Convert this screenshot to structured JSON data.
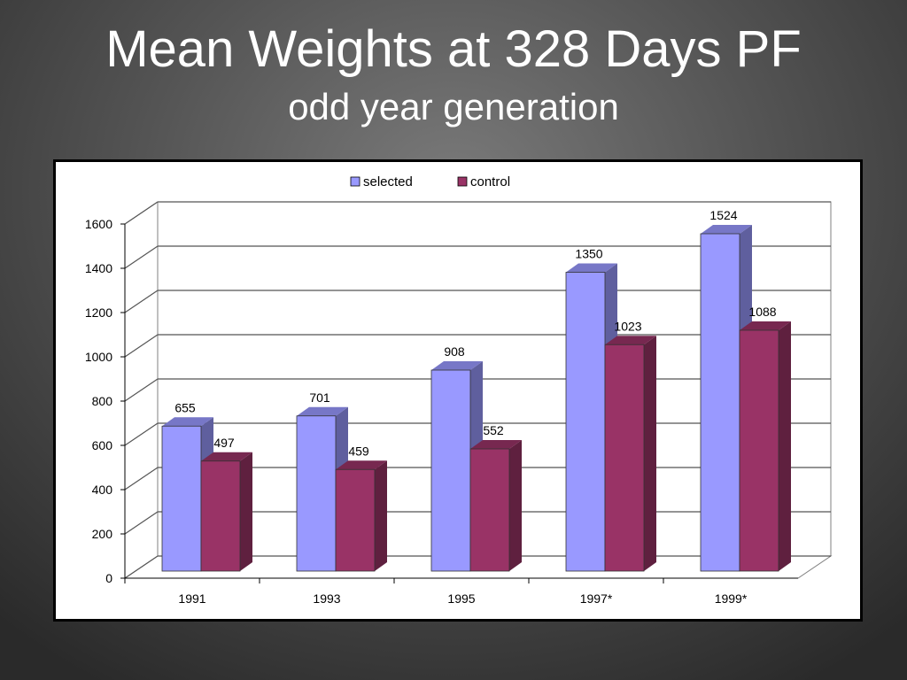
{
  "slide": {
    "title": "Mean Weights at 328 Days PF",
    "subtitle": "odd year generation"
  },
  "chart_data": {
    "type": "bar",
    "style": "3d-clustered",
    "categories": [
      "1991",
      "1993",
      "1995",
      "1997*",
      "1999*"
    ],
    "series": [
      {
        "name": "selected",
        "values": [
          655,
          701,
          908,
          1350,
          1524
        ],
        "color": "#9999ff"
      },
      {
        "name": "control",
        "values": [
          497,
          459,
          552,
          1023,
          1088
        ],
        "color": "#993366"
      }
    ],
    "ylim": [
      0,
      1600
    ],
    "yticks": [
      0,
      200,
      400,
      600,
      800,
      1000,
      1200,
      1400,
      1600
    ],
    "grid": true,
    "legend_position": "top-center",
    "data_labels": true
  }
}
